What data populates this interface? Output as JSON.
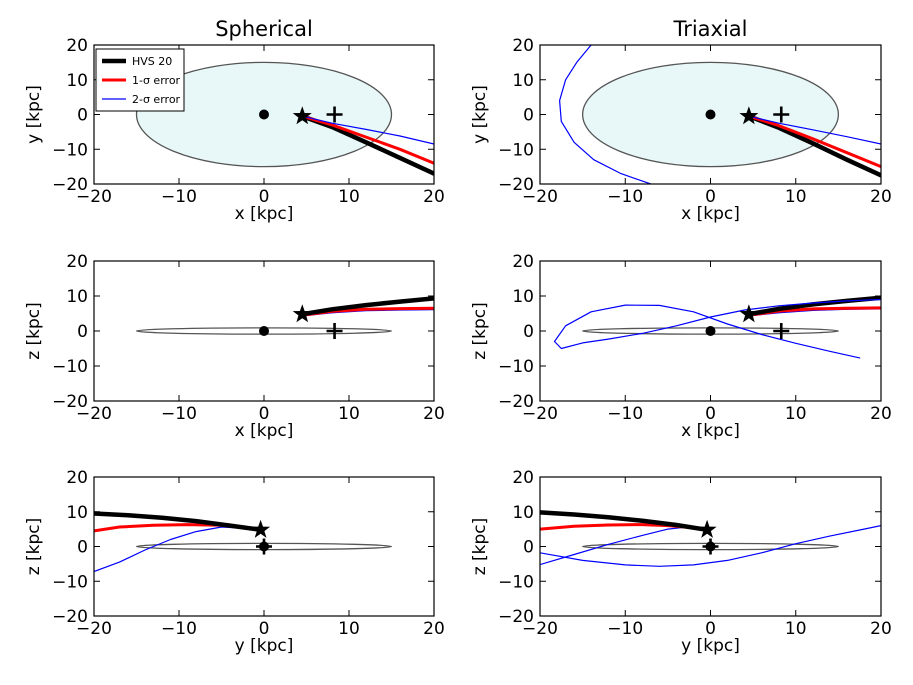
{
  "colors": {
    "disk_fill": "#e8f8f8",
    "disk_stroke": "#555555",
    "hvs": "#000000",
    "err1": "#ff0000",
    "err2": "#0000ff"
  },
  "legend": {
    "entries": [
      {
        "label": "HVS 20",
        "color": "#000000",
        "width": 4.5
      },
      {
        "label": "1-σ error",
        "color": "#ff0000",
        "width": 3
      },
      {
        "label": "2-σ error",
        "color": "#0000ff",
        "width": 1.2
      }
    ],
    "panel": "spherical-xy",
    "placement": "upper-left"
  },
  "chart_data": [
    {
      "id": "spherical-xy",
      "type": "line",
      "title": "Spherical",
      "xlabel": "x [kpc]",
      "ylabel": "y [kpc]",
      "xlim": [
        -20,
        20
      ],
      "ylim": [
        -20,
        20
      ],
      "xticks": [
        "−20",
        "−10",
        "0",
        "10",
        "20"
      ],
      "yticks": [
        "20",
        "10",
        "0",
        "−10",
        "−20"
      ],
      "disk": {
        "cx": 0,
        "cy": 0,
        "rx": 15,
        "ry": 15,
        "filled": true
      },
      "center_dot": [
        0,
        0
      ],
      "plus": [
        8.3,
        0
      ],
      "star": [
        4.5,
        -0.5
      ],
      "series": [
        {
          "role": "hvs",
          "points": [
            [
              4.5,
              -0.5
            ],
            [
              8,
              -3.6
            ],
            [
              12,
              -8
            ],
            [
              16,
              -12.5
            ],
            [
              20,
              -17
            ]
          ]
        },
        {
          "role": "err1",
          "points": [
            [
              4.5,
              -0.5
            ],
            [
              8,
              -3
            ],
            [
              12,
              -6.5
            ],
            [
              16,
              -10
            ],
            [
              20,
              -14
            ]
          ]
        },
        {
          "role": "err2",
          "points": [
            [
              4.5,
              -0.5
            ],
            [
              8,
              -2.5
            ],
            [
              12,
              -4.3
            ],
            [
              16,
              -6.2
            ],
            [
              20,
              -8.5
            ]
          ]
        }
      ]
    },
    {
      "id": "triaxial-xy",
      "type": "line",
      "title": "Triaxial",
      "xlabel": "x [kpc]",
      "ylabel": "y [kpc]",
      "xlim": [
        -20,
        20
      ],
      "ylim": [
        -20,
        20
      ],
      "xticks": [
        "−20",
        "−10",
        "0",
        "10",
        "20"
      ],
      "yticks": [
        "20",
        "10",
        "0",
        "−10",
        "−20"
      ],
      "disk": {
        "cx": 0,
        "cy": 0,
        "rx": 15,
        "ry": 15,
        "filled": true
      },
      "center_dot": [
        0,
        0
      ],
      "plus": [
        8.3,
        0
      ],
      "star": [
        4.5,
        -0.5
      ],
      "series": [
        {
          "role": "hvs",
          "points": [
            [
              4.5,
              -0.5
            ],
            [
              8,
              -3.8
            ],
            [
              12,
              -8.3
            ],
            [
              16,
              -13
            ],
            [
              20,
              -17.5
            ]
          ]
        },
        {
          "role": "err1",
          "points": [
            [
              4.5,
              -0.5
            ],
            [
              8,
              -3.2
            ],
            [
              12,
              -7
            ],
            [
              16,
              -11
            ],
            [
              20,
              -15
            ]
          ]
        },
        {
          "role": "err2",
          "points": [
            [
              4.5,
              -0.5
            ],
            [
              8,
              -2.5
            ],
            [
              12,
              -4.4
            ],
            [
              16,
              -6.4
            ],
            [
              20,
              -8.5
            ]
          ]
        },
        {
          "role": "err2",
          "points": [
            [
              -7,
              -20
            ],
            [
              -10.5,
              -17
            ],
            [
              -13.7,
              -13
            ],
            [
              -16,
              -8
            ],
            [
              -17.5,
              -2
            ],
            [
              -17.7,
              4
            ],
            [
              -17,
              10
            ],
            [
              -15.7,
              15
            ],
            [
              -14,
              20
            ]
          ]
        }
      ]
    },
    {
      "id": "spherical-xz",
      "type": "line",
      "title": "",
      "xlabel": "x [kpc]",
      "ylabel": "z [kpc]",
      "xlim": [
        -20,
        20
      ],
      "ylim": [
        -20,
        20
      ],
      "xticks": [
        "−20",
        "−10",
        "0",
        "10",
        "20"
      ],
      "yticks": [
        "20",
        "10",
        "0",
        "−10",
        "−20"
      ],
      "disk": {
        "cx": 0,
        "cy": 0,
        "rx": 15,
        "ry": 0.9,
        "filled": false
      },
      "center_dot": [
        0,
        0
      ],
      "plus": [
        8.3,
        0
      ],
      "star": [
        4.5,
        4.8
      ],
      "series": [
        {
          "role": "err2",
          "points": [
            [
              4.5,
              4.3
            ],
            [
              8,
              5.2
            ],
            [
              12,
              5.8
            ],
            [
              16,
              6
            ],
            [
              20,
              6.1
            ]
          ]
        },
        {
          "role": "err1",
          "points": [
            [
              4.5,
              4.5
            ],
            [
              8,
              5.6
            ],
            [
              12,
              6.2
            ],
            [
              16,
              6.4
            ],
            [
              20,
              6.5
            ]
          ]
        },
        {
          "role": "hvs",
          "points": [
            [
              4.5,
              4.8
            ],
            [
              8,
              6.2
            ],
            [
              12,
              7.4
            ],
            [
              16,
              8.4
            ],
            [
              20,
              9.3
            ]
          ]
        }
      ]
    },
    {
      "id": "triaxial-xz",
      "type": "line",
      "title": "",
      "xlabel": "x [kpc]",
      "ylabel": "z [kpc]",
      "xlim": [
        -20,
        20
      ],
      "ylim": [
        -20,
        20
      ],
      "xticks": [
        "−20",
        "−10",
        "0",
        "10",
        "20"
      ],
      "yticks": [
        "20",
        "10",
        "0",
        "−10",
        "−20"
      ],
      "disk": {
        "cx": 0,
        "cy": 0,
        "rx": 15,
        "ry": 0.9,
        "filled": false
      },
      "center_dot": [
        0,
        0
      ],
      "plus": [
        8.3,
        0
      ],
      "star": [
        4.5,
        4.8
      ],
      "series": [
        {
          "role": "err2",
          "points": [
            [
              4.5,
              4.3
            ],
            [
              8,
              5.2
            ],
            [
              12,
              5.9
            ],
            [
              16,
              6.2
            ],
            [
              20,
              6.3
            ]
          ]
        },
        {
          "role": "err1",
          "points": [
            [
              4.5,
              4.5
            ],
            [
              8,
              5.7
            ],
            [
              12,
              6.3
            ],
            [
              16,
              6.5
            ],
            [
              20,
              6.6
            ]
          ]
        },
        {
          "role": "hvs",
          "points": [
            [
              4.5,
              4.8
            ],
            [
              8,
              6.3
            ],
            [
              12,
              7.6
            ],
            [
              16,
              8.6
            ],
            [
              20,
              9.5
            ]
          ]
        },
        {
          "role": "err2",
          "points": [
            [
              20,
              9
            ],
            [
              16,
              8.6
            ],
            [
              12,
              8
            ],
            [
              8,
              7.2
            ],
            [
              4,
              6
            ],
            [
              0,
              4
            ],
            [
              -4,
              1.5
            ],
            [
              -8,
              -0.7
            ],
            [
              -12,
              -2.3
            ],
            [
              -15,
              -3.4
            ],
            [
              -17.5,
              -5
            ],
            [
              -18.3,
              -3
            ],
            [
              -17,
              1.5
            ],
            [
              -14,
              5.5
            ],
            [
              -10,
              7.4
            ],
            [
              -6,
              7.3
            ],
            [
              -2,
              5.5
            ],
            [
              2,
              2
            ],
            [
              6,
              -1
            ],
            [
              10,
              -3.5
            ],
            [
              14,
              -5.8
            ],
            [
              17.5,
              -7.7
            ]
          ]
        }
      ]
    },
    {
      "id": "spherical-yz",
      "type": "line",
      "title": "",
      "xlabel": "y [kpc]",
      "ylabel": "z [kpc]",
      "xlim": [
        -20,
        20
      ],
      "ylim": [
        -20,
        20
      ],
      "xticks": [
        "−20",
        "−10",
        "0",
        "10",
        "20"
      ],
      "yticks": [
        "20",
        "10",
        "0",
        "−10",
        "−20"
      ],
      "disk": {
        "cx": 0,
        "cy": 0,
        "rx": 15,
        "ry": 0.9,
        "filled": false
      },
      "center_dot": [
        0,
        0
      ],
      "plus": [
        0,
        0
      ],
      "star": [
        -0.4,
        4.8
      ],
      "series": [
        {
          "role": "err2",
          "points": [
            [
              -20,
              -7.2
            ],
            [
              -17,
              -4.5
            ],
            [
              -14,
              -1
            ],
            [
              -11,
              2
            ],
            [
              -8,
              4.3
            ],
            [
              -5,
              5.6
            ],
            [
              -2.5,
              5.3
            ],
            [
              -0.4,
              4.5
            ]
          ]
        },
        {
          "role": "err1",
          "points": [
            [
              -20,
              4.5
            ],
            [
              -17,
              5.6
            ],
            [
              -13,
              6.1
            ],
            [
              -9,
              6.3
            ],
            [
              -5,
              6.1
            ],
            [
              -2,
              5.4
            ],
            [
              -0.4,
              4.6
            ]
          ]
        },
        {
          "role": "hvs",
          "points": [
            [
              -20,
              9.5
            ],
            [
              -16,
              9
            ],
            [
              -12,
              8.3
            ],
            [
              -8,
              7.3
            ],
            [
              -4,
              6
            ],
            [
              -0.4,
              4.8
            ]
          ]
        }
      ]
    },
    {
      "id": "triaxial-yz",
      "type": "line",
      "title": "",
      "xlabel": "y [kpc]",
      "ylabel": "z [kpc]",
      "xlim": [
        -20,
        20
      ],
      "ylim": [
        -20,
        20
      ],
      "xticks": [
        "−20",
        "−10",
        "0",
        "10",
        "20"
      ],
      "yticks": [
        "20",
        "10",
        "0",
        "−10",
        "−20"
      ],
      "disk": {
        "cx": 0,
        "cy": 0,
        "rx": 15,
        "ry": 0.9,
        "filled": false
      },
      "center_dot": [
        0,
        0
      ],
      "plus": [
        0,
        0
      ],
      "star": [
        -0.4,
        4.8
      ],
      "series": [
        {
          "role": "err2",
          "points": [
            [
              -20,
              -1.8
            ],
            [
              -15,
              -4
            ],
            [
              -10,
              -5.3
            ],
            [
              -6,
              -5.7
            ],
            [
              -2,
              -5.3
            ],
            [
              2,
              -4
            ],
            [
              6,
              -1.8
            ],
            [
              10,
              0.8
            ],
            [
              14,
              3
            ],
            [
              18,
              5
            ],
            [
              20,
              6
            ]
          ]
        },
        {
          "role": "err2",
          "points": [
            [
              -20,
              -5.2
            ],
            [
              -16,
              -2.3
            ],
            [
              -12,
              0.6
            ],
            [
              -8,
              3.2
            ],
            [
              -5,
              5
            ],
            [
              -2,
              5.8
            ],
            [
              -0.4,
              4.8
            ]
          ]
        },
        {
          "role": "err1",
          "points": [
            [
              -20,
              5
            ],
            [
              -16,
              5.8
            ],
            [
              -12,
              6.2
            ],
            [
              -8,
              6.3
            ],
            [
              -5,
              6
            ],
            [
              -2,
              5.4
            ],
            [
              -0.4,
              4.6
            ]
          ]
        },
        {
          "role": "hvs",
          "points": [
            [
              -20,
              9.8
            ],
            [
              -16,
              9.2
            ],
            [
              -12,
              8.4
            ],
            [
              -8,
              7.4
            ],
            [
              -4,
              6.2
            ],
            [
              -0.4,
              4.8
            ]
          ]
        }
      ]
    }
  ]
}
